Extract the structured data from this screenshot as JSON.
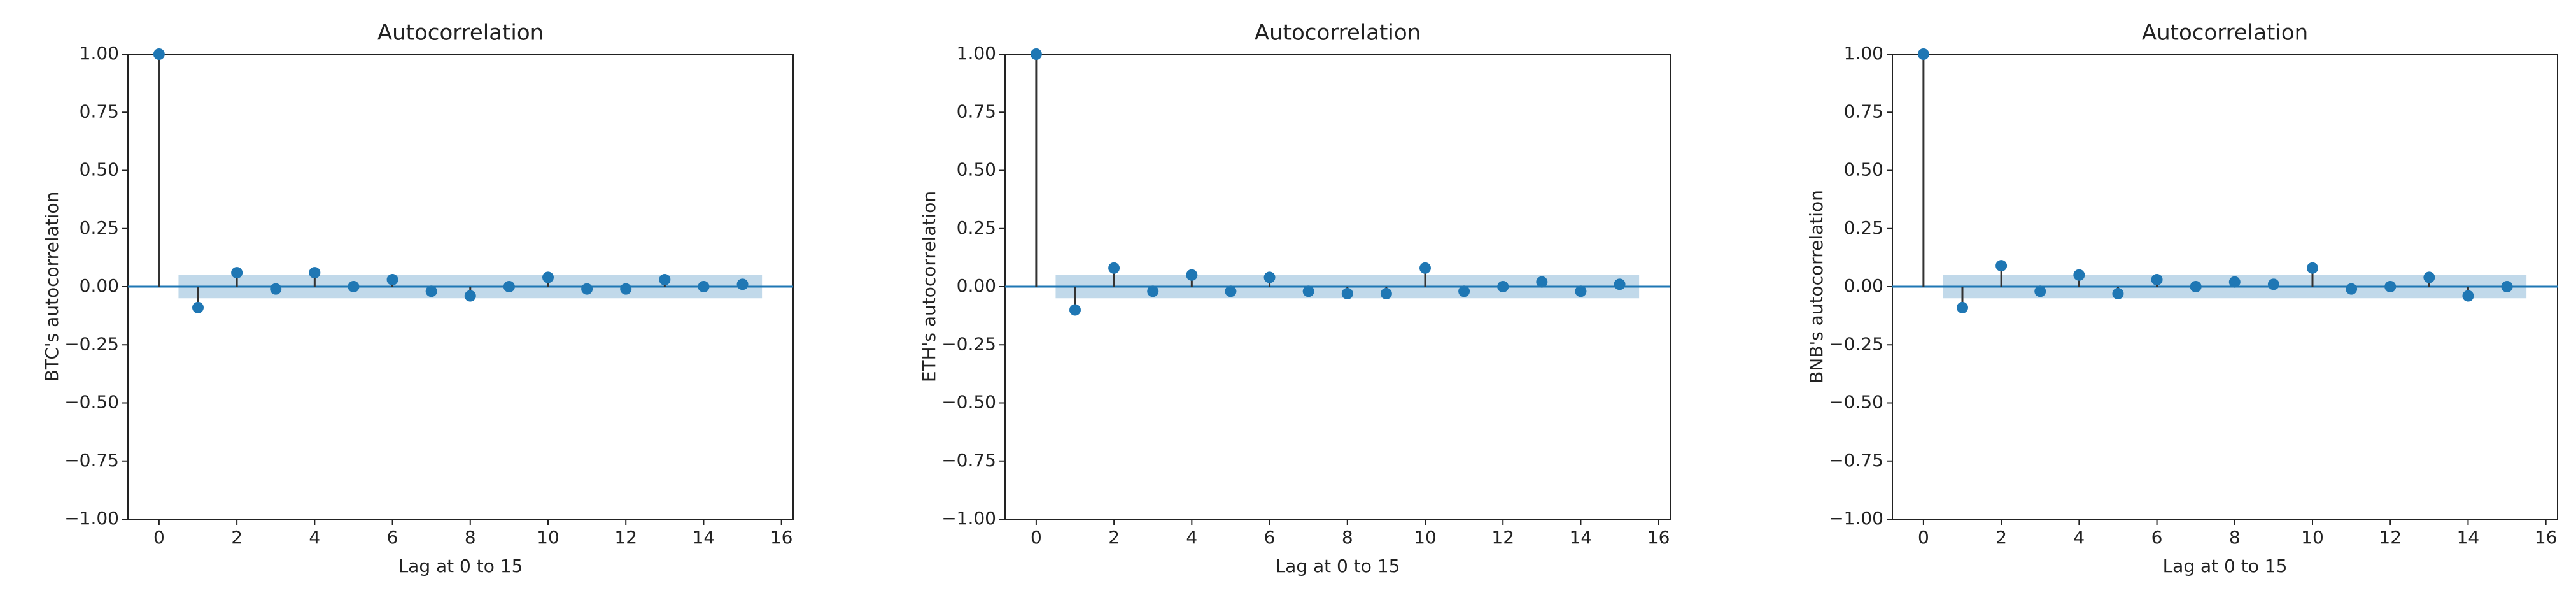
{
  "chart_data": [
    {
      "type": "stem",
      "title": "Autocorrelation",
      "xlabel": "Lag at 0 to 15",
      "ylabel": "BTC's autocorrelation",
      "x": [
        0,
        1,
        2,
        3,
        4,
        5,
        6,
        7,
        8,
        9,
        10,
        11,
        12,
        13,
        14,
        15
      ],
      "values": [
        1,
        -0.09,
        0.06,
        -0.01,
        0.06,
        0.0,
        0.03,
        -0.02,
        -0.04,
        0.0,
        0.04,
        -0.01,
        -0.01,
        0.03,
        0.0,
        0.01
      ],
      "color": "#1f77b4",
      "stem_color": "#333333",
      "confidence_band": [
        -0.05,
        0.05
      ],
      "xlim": [
        -0.8,
        16.3
      ],
      "ylim": [
        -1,
        1
      ],
      "xticks": [
        0,
        2,
        4,
        6,
        8,
        10,
        12,
        14,
        16
      ],
      "yticks": [
        {
          "value": -1,
          "label": "−1.00"
        },
        {
          "value": -0.75,
          "label": "−0.75"
        },
        {
          "value": -0.5,
          "label": "−0.50"
        },
        {
          "value": -0.25,
          "label": "−0.25"
        },
        {
          "value": 0,
          "label": "0.00"
        },
        {
          "value": 0.25,
          "label": "0.25"
        },
        {
          "value": 0.5,
          "label": "0.50"
        },
        {
          "value": 0.75,
          "label": "0.75"
        },
        {
          "value": 1,
          "label": "1.00"
        }
      ]
    },
    {
      "type": "stem",
      "title": "Autocorrelation",
      "xlabel": "Lag at 0 to 15",
      "ylabel": "ETH's autocorrelation",
      "x": [
        0,
        1,
        2,
        3,
        4,
        5,
        6,
        7,
        8,
        9,
        10,
        11,
        12,
        13,
        14,
        15
      ],
      "values": [
        1,
        -0.1,
        0.08,
        -0.02,
        0.05,
        -0.02,
        0.04,
        -0.02,
        -0.03,
        -0.03,
        0.08,
        -0.02,
        0.0,
        0.02,
        -0.02,
        0.01
      ],
      "color": "#1f77b4",
      "stem_color": "#333333",
      "confidence_band": [
        -0.05,
        0.05
      ],
      "xlim": [
        -0.8,
        16.3
      ],
      "ylim": [
        -1,
        1
      ],
      "xticks": [
        0,
        2,
        4,
        6,
        8,
        10,
        12,
        14,
        16
      ],
      "yticks": [
        {
          "value": -1,
          "label": "−1.00"
        },
        {
          "value": -0.75,
          "label": "−0.75"
        },
        {
          "value": -0.5,
          "label": "−0.50"
        },
        {
          "value": -0.25,
          "label": "−0.25"
        },
        {
          "value": 0,
          "label": "0.00"
        },
        {
          "value": 0.25,
          "label": "0.25"
        },
        {
          "value": 0.5,
          "label": "0.50"
        },
        {
          "value": 0.75,
          "label": "0.75"
        },
        {
          "value": 1,
          "label": "1.00"
        }
      ]
    },
    {
      "type": "stem",
      "title": "Autocorrelation",
      "xlabel": "Lag at 0 to 15",
      "ylabel": "BNB's autocorrelation",
      "x": [
        0,
        1,
        2,
        3,
        4,
        5,
        6,
        7,
        8,
        9,
        10,
        11,
        12,
        13,
        14,
        15
      ],
      "values": [
        1,
        -0.09,
        0.09,
        -0.02,
        0.05,
        -0.03,
        0.03,
        0.0,
        0.02,
        0.01,
        0.08,
        -0.01,
        0.0,
        0.04,
        -0.04,
        0.0
      ],
      "color": "#1f77b4",
      "stem_color": "#333333",
      "confidence_band": [
        -0.05,
        0.05
      ],
      "xlim": [
        -0.8,
        16.3
      ],
      "ylim": [
        -1,
        1
      ],
      "xticks": [
        0,
        2,
        4,
        6,
        8,
        10,
        12,
        14,
        16
      ],
      "yticks": [
        {
          "value": -1,
          "label": "−1.00"
        },
        {
          "value": -0.75,
          "label": "−0.75"
        },
        {
          "value": -0.5,
          "label": "−0.50"
        },
        {
          "value": -0.25,
          "label": "−0.25"
        },
        {
          "value": 0,
          "label": "0.00"
        },
        {
          "value": 0.25,
          "label": "0.25"
        },
        {
          "value": 0.5,
          "label": "0.50"
        },
        {
          "value": 0.75,
          "label": "0.75"
        },
        {
          "value": 1,
          "label": "1.00"
        }
      ]
    }
  ]
}
